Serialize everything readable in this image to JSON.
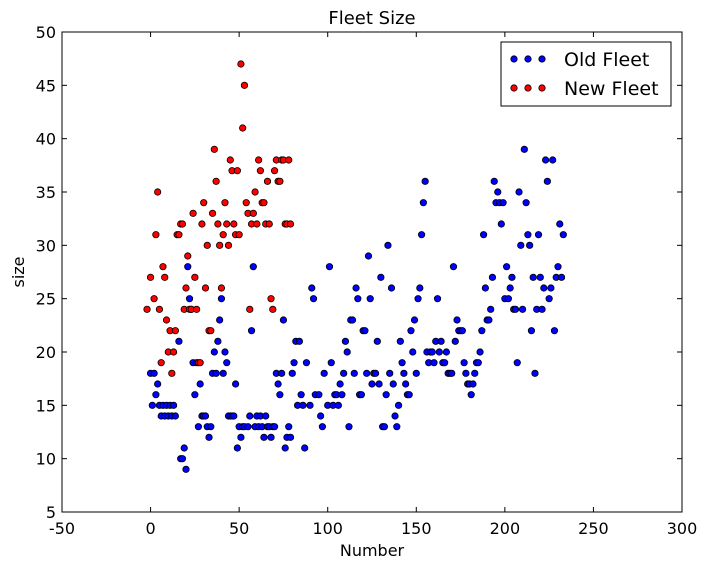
{
  "chart_data": {
    "type": "scatter",
    "title": "Fleet Size",
    "xlabel": "Number",
    "ylabel": "size",
    "xlim": [
      -50,
      300
    ],
    "ylim": [
      5,
      50
    ],
    "xticks": [
      -50,
      0,
      50,
      100,
      150,
      200,
      250,
      300
    ],
    "yticks": [
      5,
      10,
      15,
      20,
      25,
      30,
      35,
      40,
      45,
      50
    ],
    "grid": false,
    "legend_position": "top-right",
    "series": [
      {
        "name": "Old Fleet",
        "color": "#0000ff",
        "points": [
          [
            0,
            18
          ],
          [
            1,
            15
          ],
          [
            2,
            18
          ],
          [
            3,
            16
          ],
          [
            4,
            17
          ],
          [
            5,
            15
          ],
          [
            6,
            14
          ],
          [
            7,
            15
          ],
          [
            8,
            14
          ],
          [
            9,
            15
          ],
          [
            10,
            14
          ],
          [
            11,
            15
          ],
          [
            12,
            14
          ],
          [
            13,
            15
          ],
          [
            14,
            14
          ],
          [
            16,
            21
          ],
          [
            17,
            10
          ],
          [
            18,
            10
          ],
          [
            19,
            11
          ],
          [
            20,
            9
          ],
          [
            21,
            28
          ],
          [
            22,
            25
          ],
          [
            23,
            24
          ],
          [
            24,
            19
          ],
          [
            25,
            16
          ],
          [
            26,
            19
          ],
          [
            27,
            13
          ],
          [
            28,
            17
          ],
          [
            29,
            14
          ],
          [
            30,
            14
          ],
          [
            31,
            14
          ],
          [
            32,
            13
          ],
          [
            33,
            12
          ],
          [
            34,
            13
          ],
          [
            35,
            18
          ],
          [
            36,
            20
          ],
          [
            37,
            18
          ],
          [
            38,
            21
          ],
          [
            39,
            23
          ],
          [
            40,
            25
          ],
          [
            41,
            18
          ],
          [
            42,
            20
          ],
          [
            43,
            19
          ],
          [
            44,
            14
          ],
          [
            45,
            14
          ],
          [
            46,
            14
          ],
          [
            47,
            14
          ],
          [
            48,
            17
          ],
          [
            49,
            11
          ],
          [
            50,
            13
          ],
          [
            51,
            12
          ],
          [
            52,
            13
          ],
          [
            53,
            13
          ],
          [
            55,
            13
          ],
          [
            56,
            14
          ],
          [
            57,
            22
          ],
          [
            58,
            28
          ],
          [
            59,
            13
          ],
          [
            60,
            14
          ],
          [
            61,
            13
          ],
          [
            62,
            14
          ],
          [
            63,
            13
          ],
          [
            64,
            12
          ],
          [
            65,
            14
          ],
          [
            66,
            13
          ],
          [
            67,
            13
          ],
          [
            68,
            12
          ],
          [
            69,
            13
          ],
          [
            70,
            13
          ],
          [
            71,
            18
          ],
          [
            72,
            17
          ],
          [
            73,
            16
          ],
          [
            74,
            18
          ],
          [
            75,
            23
          ],
          [
            76,
            11
          ],
          [
            77,
            12
          ],
          [
            78,
            13
          ],
          [
            79,
            12
          ],
          [
            80,
            18
          ],
          [
            81,
            19
          ],
          [
            82,
            21
          ],
          [
            83,
            15
          ],
          [
            84,
            21
          ],
          [
            85,
            16
          ],
          [
            86,
            15
          ],
          [
            87,
            11
          ],
          [
            88,
            19
          ],
          [
            90,
            15
          ],
          [
            91,
            26
          ],
          [
            92,
            25
          ],
          [
            93,
            16
          ],
          [
            95,
            16
          ],
          [
            96,
            14
          ],
          [
            97,
            13
          ],
          [
            98,
            18
          ],
          [
            100,
            15
          ],
          [
            101,
            28
          ],
          [
            102,
            19
          ],
          [
            103,
            15
          ],
          [
            104,
            16
          ],
          [
            105,
            16
          ],
          [
            106,
            15
          ],
          [
            107,
            17
          ],
          [
            108,
            16
          ],
          [
            109,
            18
          ],
          [
            110,
            21
          ],
          [
            111,
            20
          ],
          [
            112,
            13
          ],
          [
            113,
            23
          ],
          [
            114,
            23
          ],
          [
            115,
            18
          ],
          [
            116,
            26
          ],
          [
            117,
            25
          ],
          [
            118,
            16
          ],
          [
            119,
            16
          ],
          [
            120,
            22
          ],
          [
            121,
            22
          ],
          [
            122,
            18
          ],
          [
            123,
            29
          ],
          [
            124,
            25
          ],
          [
            125,
            17
          ],
          [
            126,
            18
          ],
          [
            127,
            18
          ],
          [
            128,
            21
          ],
          [
            129,
            17
          ],
          [
            130,
            27
          ],
          [
            131,
            13
          ],
          [
            132,
            13
          ],
          [
            133,
            16
          ],
          [
            134,
            30
          ],
          [
            135,
            18
          ],
          [
            136,
            26
          ],
          [
            137,
            17
          ],
          [
            138,
            14
          ],
          [
            139,
            13
          ],
          [
            140,
            15
          ],
          [
            141,
            21
          ],
          [
            142,
            19
          ],
          [
            143,
            18
          ],
          [
            144,
            17
          ],
          [
            145,
            16
          ],
          [
            146,
            16
          ],
          [
            147,
            22
          ],
          [
            148,
            20
          ],
          [
            149,
            23
          ],
          [
            150,
            18
          ],
          [
            151,
            25
          ],
          [
            152,
            26
          ],
          [
            153,
            31
          ],
          [
            154,
            34
          ],
          [
            155,
            36
          ],
          [
            156,
            20
          ],
          [
            157,
            19
          ],
          [
            158,
            20
          ],
          [
            159,
            20
          ],
          [
            160,
            19
          ],
          [
            161,
            21
          ],
          [
            162,
            25
          ],
          [
            163,
            20
          ],
          [
            164,
            21
          ],
          [
            165,
            19
          ],
          [
            166,
            19
          ],
          [
            167,
            20
          ],
          [
            168,
            18
          ],
          [
            169,
            18
          ],
          [
            170,
            18
          ],
          [
            171,
            28
          ],
          [
            172,
            21
          ],
          [
            173,
            23
          ],
          [
            174,
            22
          ],
          [
            175,
            22
          ],
          [
            176,
            22
          ],
          [
            177,
            19
          ],
          [
            178,
            18
          ],
          [
            179,
            17
          ],
          [
            180,
            17
          ],
          [
            181,
            16
          ],
          [
            182,
            17
          ],
          [
            183,
            18
          ],
          [
            184,
            19
          ],
          [
            185,
            19
          ],
          [
            186,
            20
          ],
          [
            187,
            22
          ],
          [
            188,
            31
          ],
          [
            189,
            26
          ],
          [
            190,
            23
          ],
          [
            191,
            23
          ],
          [
            192,
            24
          ],
          [
            193,
            27
          ],
          [
            194,
            36
          ],
          [
            195,
            34
          ],
          [
            196,
            35
          ],
          [
            197,
            34
          ],
          [
            198,
            32
          ],
          [
            199,
            34
          ],
          [
            200,
            25
          ],
          [
            201,
            28
          ],
          [
            202,
            25
          ],
          [
            203,
            26
          ],
          [
            204,
            27
          ],
          [
            205,
            24
          ],
          [
            206,
            24
          ],
          [
            207,
            19
          ],
          [
            208,
            35
          ],
          [
            209,
            30
          ],
          [
            210,
            24
          ],
          [
            211,
            39
          ],
          [
            212,
            34
          ],
          [
            213,
            31
          ],
          [
            214,
            30
          ],
          [
            215,
            22
          ],
          [
            216,
            27
          ],
          [
            217,
            18
          ],
          [
            218,
            24
          ],
          [
            219,
            31
          ],
          [
            220,
            27
          ],
          [
            221,
            24
          ],
          [
            222,
            26
          ],
          [
            223,
            38
          ],
          [
            224,
            36
          ],
          [
            225,
            25
          ],
          [
            226,
            26
          ],
          [
            227,
            38
          ],
          [
            228,
            22
          ],
          [
            229,
            27
          ],
          [
            230,
            28
          ],
          [
            231,
            32
          ],
          [
            232,
            27
          ],
          [
            233,
            31
          ]
        ]
      },
      {
        "name": "New Fleet",
        "color": "#ff0000",
        "points": [
          [
            -2,
            24
          ],
          [
            0,
            27
          ],
          [
            2,
            25
          ],
          [
            3,
            31
          ],
          [
            4,
            35
          ],
          [
            5,
            24
          ],
          [
            6,
            19
          ],
          [
            7,
            28
          ],
          [
            8,
            27
          ],
          [
            9,
            23
          ],
          [
            10,
            20
          ],
          [
            11,
            22
          ],
          [
            12,
            18
          ],
          [
            13,
            20
          ],
          [
            14,
            22
          ],
          [
            15,
            31
          ],
          [
            16,
            31
          ],
          [
            17,
            32
          ],
          [
            18,
            32
          ],
          [
            19,
            24
          ],
          [
            20,
            26
          ],
          [
            21,
            29
          ],
          [
            22,
            24
          ],
          [
            23,
            24
          ],
          [
            24,
            33
          ],
          [
            25,
            27
          ],
          [
            26,
            24
          ],
          [
            27,
            19
          ],
          [
            28,
            19
          ],
          [
            29,
            32
          ],
          [
            30,
            34
          ],
          [
            31,
            26
          ],
          [
            32,
            30
          ],
          [
            33,
            22
          ],
          [
            34,
            22
          ],
          [
            35,
            33
          ],
          [
            36,
            39
          ],
          [
            37,
            36
          ],
          [
            38,
            32
          ],
          [
            39,
            30
          ],
          [
            40,
            26
          ],
          [
            41,
            31
          ],
          [
            42,
            34
          ],
          [
            43,
            32
          ],
          [
            44,
            30
          ],
          [
            45,
            38
          ],
          [
            46,
            37
          ],
          [
            47,
            32
          ],
          [
            48,
            31
          ],
          [
            49,
            37
          ],
          [
            50,
            31
          ],
          [
            51,
            47
          ],
          [
            52,
            41
          ],
          [
            53,
            45
          ],
          [
            54,
            34
          ],
          [
            55,
            33
          ],
          [
            56,
            24
          ],
          [
            57,
            32
          ],
          [
            58,
            33
          ],
          [
            59,
            35
          ],
          [
            60,
            32
          ],
          [
            61,
            38
          ],
          [
            62,
            37
          ],
          [
            63,
            34
          ],
          [
            64,
            34
          ],
          [
            65,
            32
          ],
          [
            66,
            36
          ],
          [
            67,
            32
          ],
          [
            68,
            25
          ],
          [
            69,
            24
          ],
          [
            70,
            37
          ],
          [
            71,
            38
          ],
          [
            72,
            36
          ],
          [
            73,
            36
          ],
          [
            74,
            38
          ],
          [
            75,
            38
          ],
          [
            76,
            32
          ],
          [
            77,
            32
          ],
          [
            78,
            38
          ],
          [
            79,
            32
          ]
        ]
      }
    ]
  }
}
